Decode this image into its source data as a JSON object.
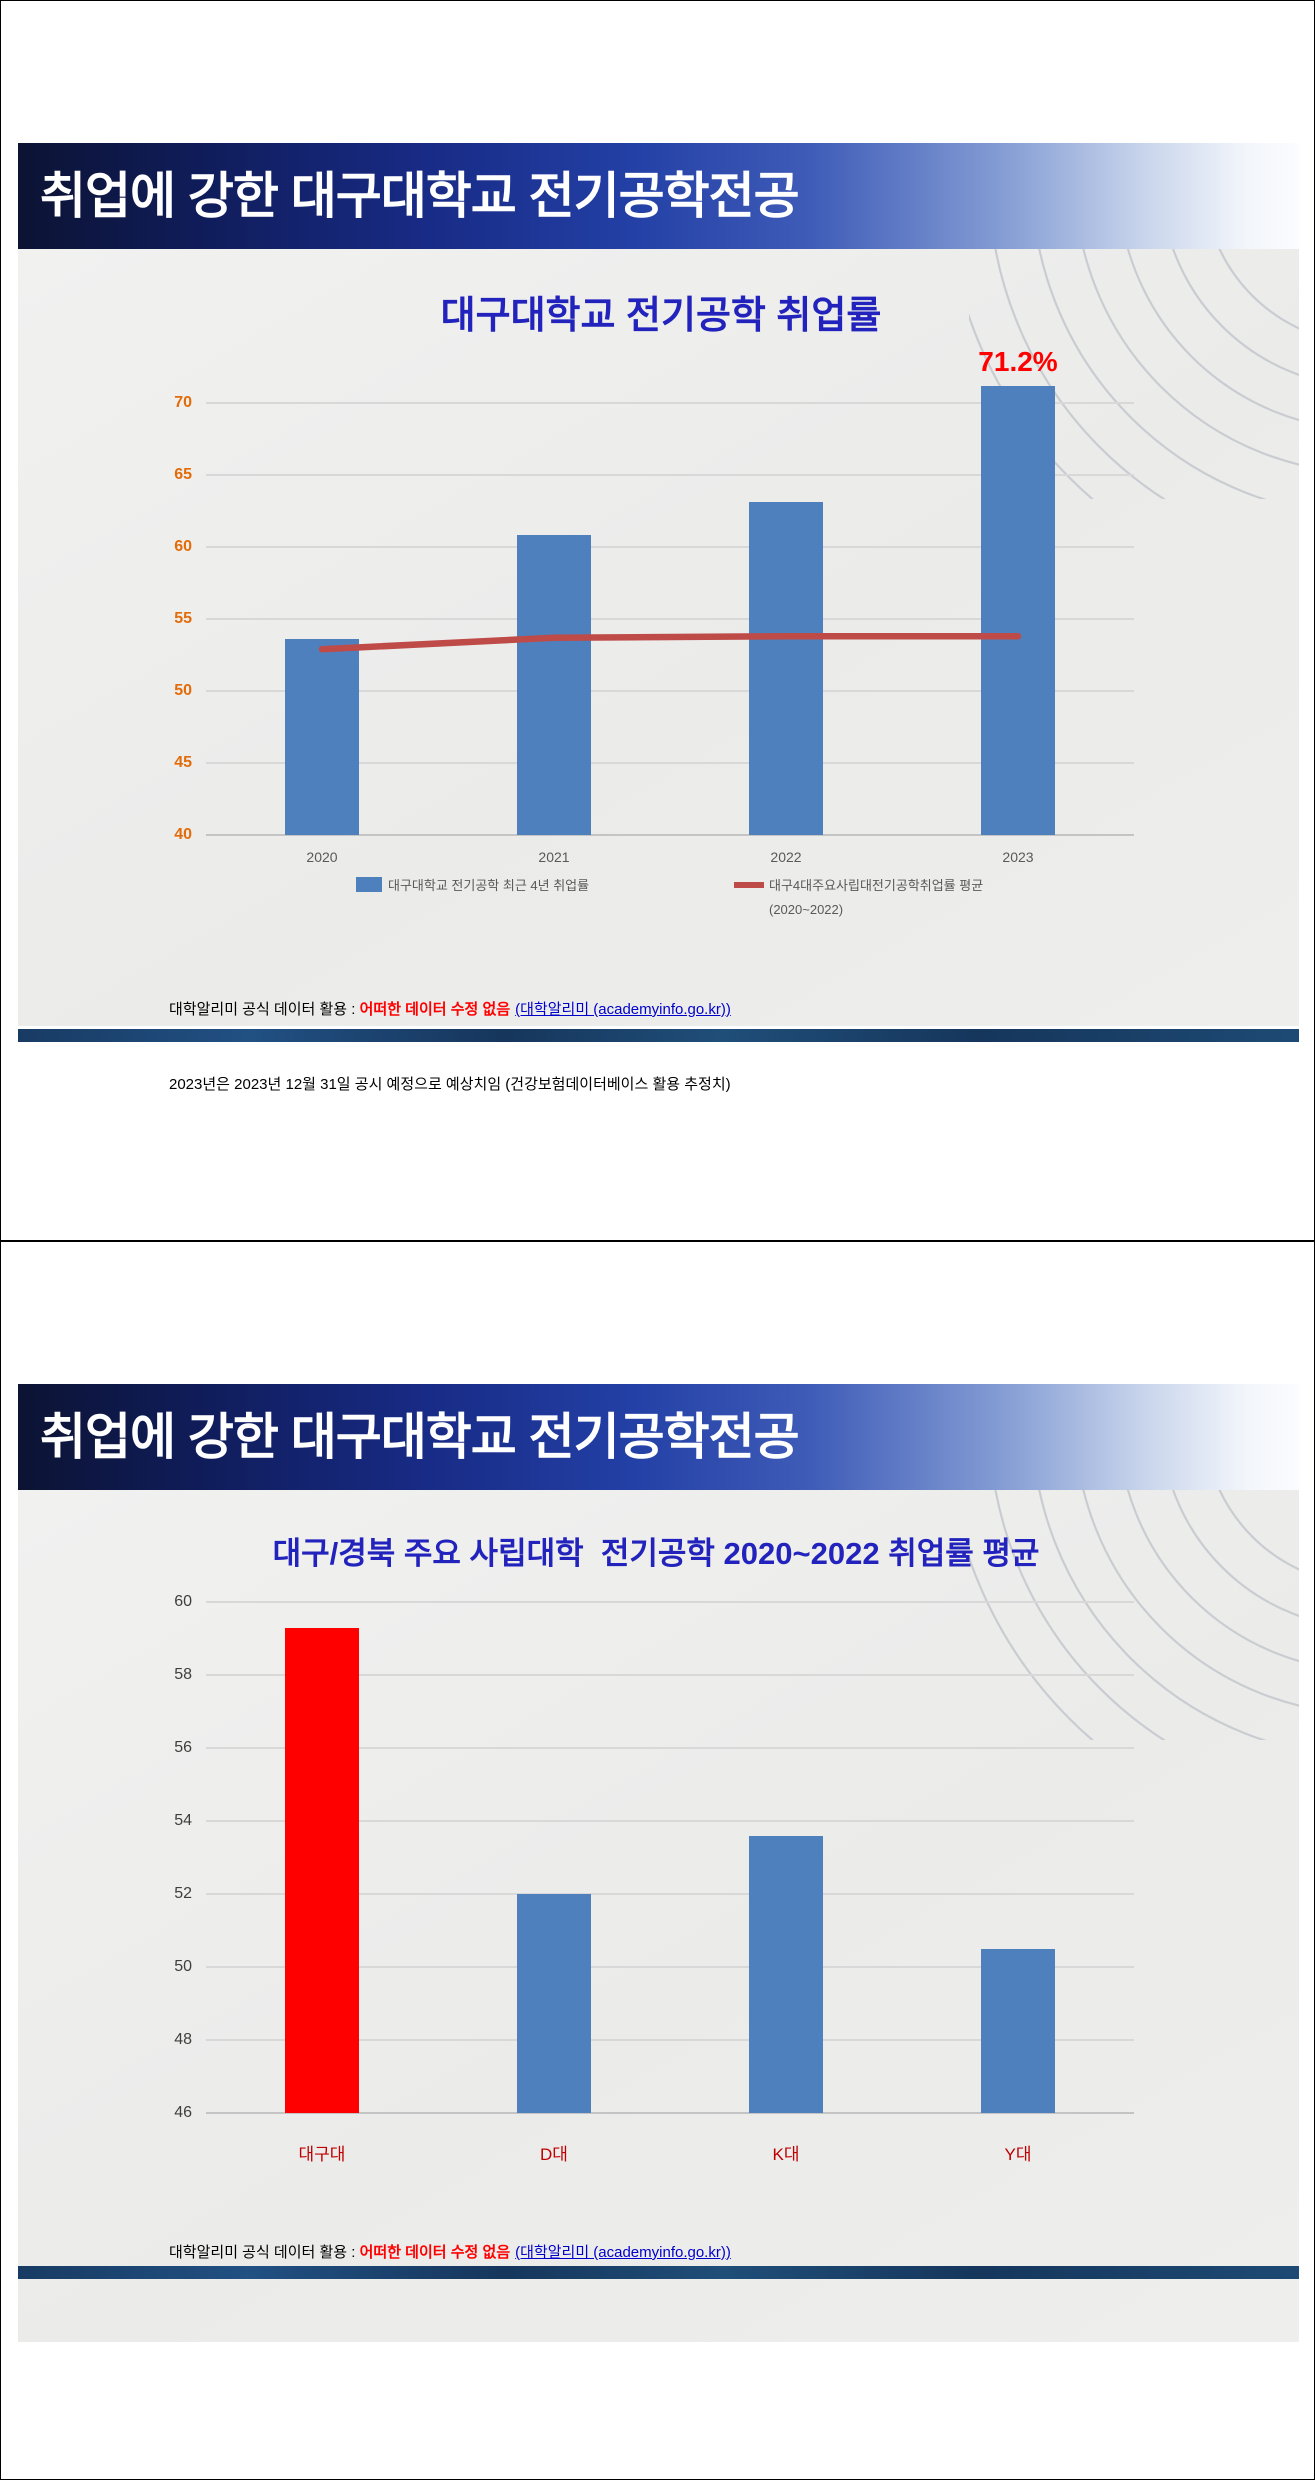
{
  "slide1": {
    "header_title": "취업에 강한 대구대학교 전기공학전공",
    "chart_title": "대구대학교 전기공학 취업률",
    "legend_bar_label": "대구대학교 전기공학 최근 4년 취업률",
    "legend_line_label": "대구4대주요사립대전기공학취업률 평균",
    "legend_line_label2": "(2020~2022)",
    "footer1_prefix": "대학알리미 공식 데이터 활용 : ",
    "footer1_highlight": "어떠한 데이터 수정 없음",
    "footer1_link": "(대학알리미 (academyinfo.go.kr))",
    "footer_line2": "2023년은 2023년 12월 31일 공시 예정으로 예상치임 (건강보험데이터베이스 활용 추정치)"
  },
  "slide2": {
    "header_title": "취업에 강한 대구대학교 전기공학전공",
    "chart_title": "대구/경북 주요 사립대학  전기공학 2020~2022 취업률 평균",
    "footer1_prefix": "대학알리미 공식 데이터 활용 : ",
    "footer1_highlight": "어떠한 데이터 수정 없음",
    "footer1_link": "(대학알리미 (academyinfo.go.kr))"
  },
  "colors": {
    "bar_blue": "#4e80bd",
    "line_red": "#be4b48",
    "highlight_red": "#ff0000",
    "title_blue": "#2222bd",
    "tick_orange": "#e36c0a",
    "tick_dark": "#3f3f3f",
    "xlabel_red": "#c00000",
    "divider_navy": "#1f4e79"
  },
  "chart_data": [
    {
      "type": "bar",
      "title": "대구대학교 전기공학 취업률",
      "categories": [
        "2020",
        "2021",
        "2022",
        "2023"
      ],
      "series": [
        {
          "name": "대구대학교 전기공학 최근 4년 취업률",
          "kind": "bar",
          "color": "#4e80bd",
          "values": [
            53.6,
            60.8,
            63.1,
            71.2
          ]
        },
        {
          "name": "대구4대주요사립대전기공학취업률 평균 (2020~2022)",
          "kind": "line",
          "color": "#be4b48",
          "values": [
            52.9,
            53.7,
            53.8,
            53.8
          ]
        }
      ],
      "ylim": [
        40,
        70
      ],
      "ytick_step": 5,
      "grid": true,
      "legend_position": "bottom",
      "annotations": [
        {
          "text": "71.2%",
          "category": "2023",
          "value": 71.2,
          "color": "#ff0000"
        }
      ]
    },
    {
      "type": "bar",
      "title": "대구/경북 주요 사립대학  전기공학 2020~2022 취업률 평균",
      "categories": [
        "대구대",
        "D대",
        "K대",
        "Y대"
      ],
      "values": [
        59.3,
        52.0,
        53.6,
        50.5
      ],
      "bar_colors": [
        "#ff0000",
        "#4e80bd",
        "#4e80bd",
        "#4e80bd"
      ],
      "ylim": [
        46,
        60
      ],
      "ytick_step": 2,
      "grid": true,
      "legend_position": "none"
    }
  ]
}
